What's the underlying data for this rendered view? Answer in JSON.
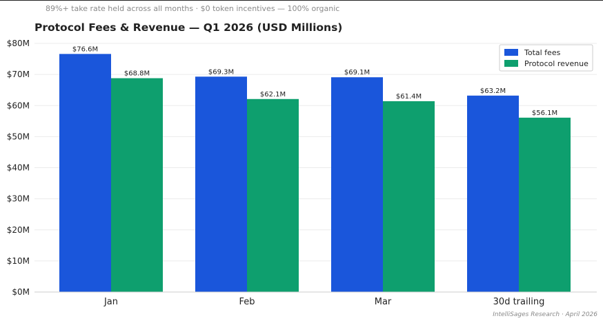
{
  "header": {
    "subtitle": "89%+ take rate held across all months · $0 token incentives — 100% organic",
    "title": "Protocol Fees & Revenue — Q1 2026 (USD Millions)"
  },
  "footer": {
    "credit": "IntelliSages Research · April 2026"
  },
  "colors": {
    "total_fees": "#1a56db",
    "protocol_revenue": "#0e9f6e",
    "grid": "#ebebeb",
    "text": "#222222"
  },
  "chart_data": {
    "type": "bar",
    "title": "Protocol Fees & Revenue — Q1 2026 (USD Millions)",
    "categories": [
      "Jan",
      "Feb",
      "Mar",
      "30d trailing"
    ],
    "series": [
      {
        "name": "Total fees",
        "values": [
          76.6,
          69.3,
          69.1,
          63.2
        ],
        "labels": [
          "$76.6M",
          "$69.3M",
          "$69.1M",
          "$63.2M"
        ]
      },
      {
        "name": "Protocol revenue",
        "values": [
          68.8,
          62.1,
          61.4,
          56.1
        ],
        "labels": [
          "$68.8M",
          "$62.1M",
          "$61.4M",
          "$56.1M"
        ]
      }
    ],
    "yticks": [
      0,
      10,
      20,
      30,
      40,
      50,
      60,
      70,
      80
    ],
    "ytick_labels": [
      "$0M",
      "$10M",
      "$20M",
      "$30M",
      "$40M",
      "$50M",
      "$60M",
      "$70M",
      "$80M"
    ],
    "ylim": [
      0,
      80
    ],
    "grid": true,
    "legend_position": "top-right"
  }
}
